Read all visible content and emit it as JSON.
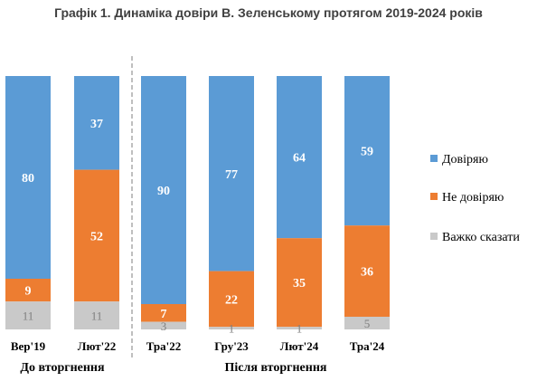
{
  "chart_data": {
    "type": "bar",
    "stacked": true,
    "title": "Графік 1. Динаміка довіри В. Зеленському протягом 2019-2024 років",
    "categories": [
      "Вер'19",
      "Лют'22",
      "Тра'22",
      "Гру'23",
      "Лют'24",
      "Тра'24"
    ],
    "series": [
      {
        "name": "Довіряю",
        "color": "#5b9bd5",
        "values": [
          80,
          37,
          90,
          77,
          64,
          59
        ]
      },
      {
        "name": "Не довіряю",
        "color": "#ed7d31",
        "values": [
          9,
          52,
          7,
          22,
          35,
          36
        ]
      },
      {
        "name": "Важко сказати",
        "color": "#c9c9c9",
        "values": [
          11,
          11,
          3,
          1,
          1,
          5
        ]
      }
    ],
    "groups": [
      {
        "label": "До вторгнення",
        "categories": [
          "Вер'19",
          "Лют'22"
        ]
      },
      {
        "label": "Після вторгнення",
        "categories": [
          "Тра'22",
          "Гру'23",
          "Лют'24",
          "Тра'24"
        ]
      }
    ],
    "ylim": [
      0,
      100
    ],
    "grid": false,
    "legend_position": "right"
  }
}
